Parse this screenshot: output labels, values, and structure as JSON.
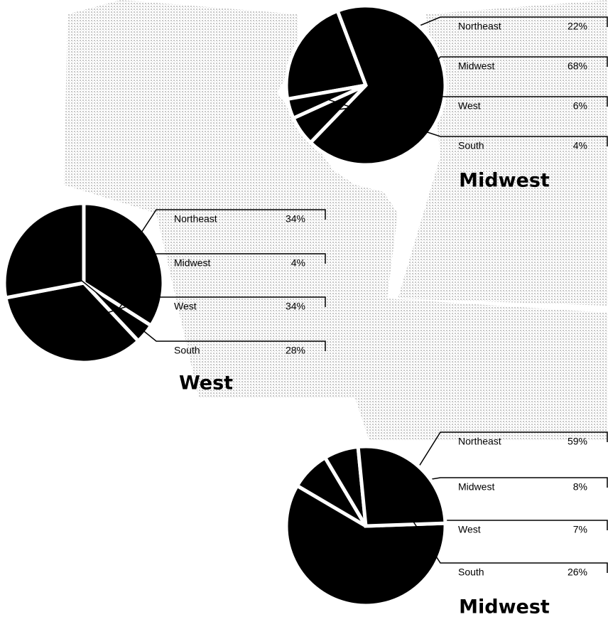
{
  "chart_data": [
    {
      "type": "pie",
      "title": "Midwest",
      "categories": [
        "Northeast",
        "Midwest",
        "West",
        "South"
      ],
      "values": [
        22,
        68,
        6,
        4
      ],
      "value_labels": [
        "22%",
        "68%",
        "6%",
        "4%"
      ],
      "color": "#000000"
    },
    {
      "type": "pie",
      "title": "West",
      "categories": [
        "Northeast",
        "Midwest",
        "West",
        "South"
      ],
      "values": [
        34,
        4,
        34,
        28
      ],
      "value_labels": [
        "34%",
        "4%",
        "34%",
        "28%"
      ],
      "color": "#000000"
    },
    {
      "type": "pie",
      "title": "Midwest",
      "categories": [
        "Northeast",
        "Midwest",
        "West",
        "South"
      ],
      "values": [
        59,
        8,
        7,
        26
      ],
      "value_labels": [
        "59%",
        "8%",
        "7%",
        "26%"
      ],
      "color": "#000000"
    }
  ]
}
